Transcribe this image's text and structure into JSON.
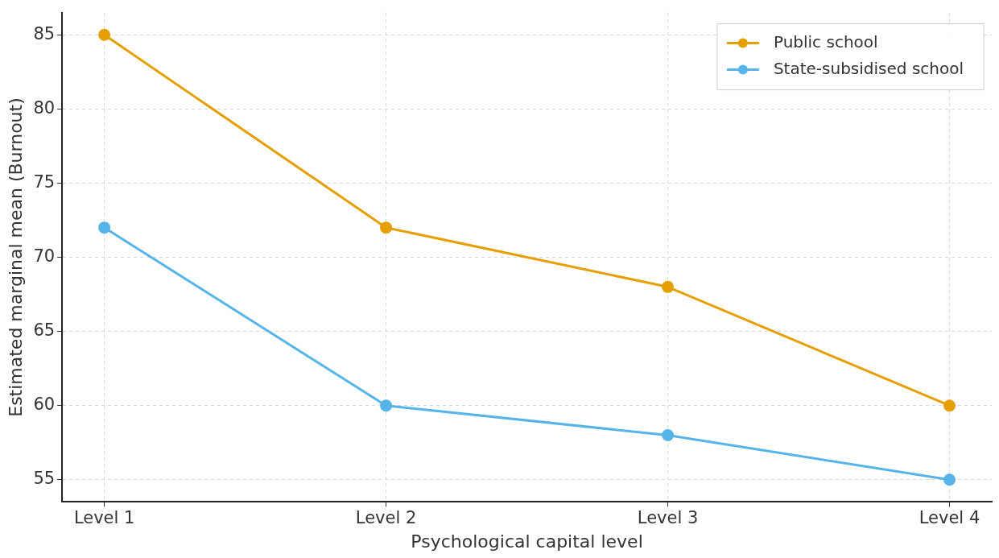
{
  "chart_data": {
    "type": "line",
    "xlabel": "Psychological capital level",
    "ylabel": "Estimated marginal mean (Burnout)",
    "categories": [
      "Level 1",
      "Level 2",
      "Level 3",
      "Level 4"
    ],
    "series": [
      {
        "name": "Public school",
        "color": "#e69f00",
        "values": [
          85,
          72,
          68,
          60
        ]
      },
      {
        "name": "State-subsidised school",
        "color": "#56b4e9",
        "values": [
          72,
          60,
          58,
          55
        ]
      }
    ],
    "ylim": [
      53.5,
      86.5
    ],
    "yticks": [
      55,
      60,
      65,
      70,
      75,
      80,
      85
    ],
    "grid": true,
    "legend": "top right",
    "marker": "circle",
    "line_style": "solid"
  }
}
